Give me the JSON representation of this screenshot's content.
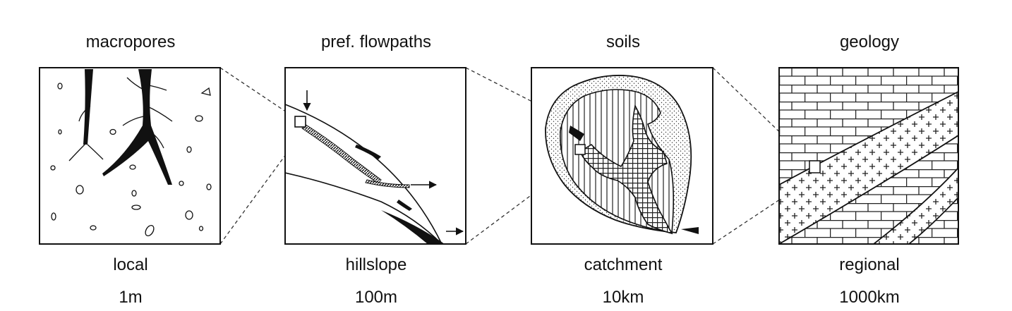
{
  "panels": [
    {
      "title": "macropores",
      "scale": "local",
      "size": "1m"
    },
    {
      "title": "pref. flowpaths",
      "scale": "hillslope",
      "size": "100m"
    },
    {
      "title": "soils",
      "scale": "catchment",
      "size": "10km"
    },
    {
      "title": "geology",
      "scale": "regional",
      "size": "1000km"
    }
  ]
}
